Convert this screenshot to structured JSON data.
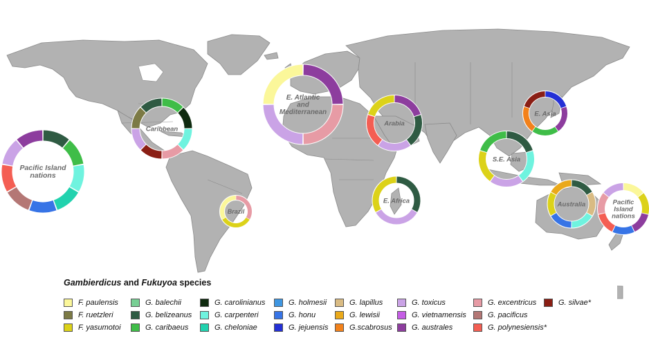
{
  "legend": {
    "title_part1": "Gambierdicus",
    "title_part2": " and ",
    "title_part3": "Fukuyoa",
    "title_part4": " species",
    "species": [
      {
        "id": "f-paulensis",
        "label": "F. paulensis",
        "color": "#fbf79a"
      },
      {
        "id": "f-ruetzleri",
        "label": "F. ruetzleri",
        "color": "#7c7a45"
      },
      {
        "id": "f-yasumotoi",
        "label": "F. yasumotoi",
        "color": "#dcd219"
      },
      {
        "id": "g-balechii",
        "label": "G. balechii",
        "color": "#78cf94"
      },
      {
        "id": "g-belizeanus",
        "label": "G. belizeanus",
        "color": "#2f5b43"
      },
      {
        "id": "g-caribaeus",
        "label": "G. caribaeus",
        "color": "#3fbd48"
      },
      {
        "id": "g-carolinianus",
        "label": "G. carolinianus",
        "color": "#0f2a0f"
      },
      {
        "id": "g-carpenteri",
        "label": "G. carpenteri",
        "color": "#6ff3df"
      },
      {
        "id": "g-cheloniae",
        "label": "G. cheloniae",
        "color": "#21d2ae"
      },
      {
        "id": "g-holmesii",
        "label": "G. holmesii",
        "color": "#3f96e1"
      },
      {
        "id": "g-honu",
        "label": "G. honu",
        "color": "#3774e6"
      },
      {
        "id": "g-jejuensis",
        "label": "G. jejuensis",
        "color": "#2430d6"
      },
      {
        "id": "g-lapillus",
        "label": "G. lapillus",
        "color": "#d9bb83"
      },
      {
        "id": "g-lewisii",
        "label": "G. lewisii",
        "color": "#eaa91a"
      },
      {
        "id": "g-scabrosus",
        "label": "G.scabrosus",
        "color": "#f2811b"
      },
      {
        "id": "g-toxicus",
        "label": "G. toxicus",
        "color": "#caa3e6"
      },
      {
        "id": "g-vietnamensis",
        "label": "G. vietnamensis",
        "color": "#c55de5"
      },
      {
        "id": "g-australes",
        "label": "G. australes",
        "color": "#8d3d9e"
      },
      {
        "id": "g-excentricus",
        "label": "G. excentricus",
        "color": "#e79ba5"
      },
      {
        "id": "g-pacificus",
        "label": "G. pacificus",
        "color": "#b47775"
      },
      {
        "id": "g-polynesiensis",
        "label": "G. polynesiensis*",
        "color": "#f45e53"
      },
      {
        "id": "g-silvae",
        "label": "G. silvae*",
        "color": "#8a1e14"
      }
    ]
  },
  "regions": [
    {
      "id": "pacific-west",
      "label_lines": [
        "Pacific Island",
        "nations"
      ],
      "segments": [
        "g-belizeanus",
        "g-caribaeus",
        "g-carpenteri",
        "g-cheloniae",
        "g-honu",
        "g-pacificus",
        "g-polynesiensis",
        "g-toxicus",
        "g-australes"
      ]
    },
    {
      "id": "caribbean",
      "label_lines": [
        "Caribbean"
      ],
      "segments": [
        "g-caribaeus",
        "g-carolinianus",
        "g-carpenteri",
        "g-excentricus",
        "g-silvae",
        "g-toxicus",
        "f-ruetzleri",
        "g-belizeanus"
      ]
    },
    {
      "id": "brazil",
      "label_lines": [
        "Brazil"
      ],
      "segments": [
        "g-excentricus",
        "f-yasumotoi",
        "f-paulensis"
      ]
    },
    {
      "id": "e-atlantic",
      "label_lines": [
        "E. Atlantic",
        "and",
        "Mediterranean"
      ],
      "segments": [
        "g-australes",
        "g-excentricus",
        "g-toxicus",
        "f-paulensis"
      ]
    },
    {
      "id": "arabia",
      "label_lines": [
        "Arabia"
      ],
      "segments": [
        "g-australes",
        "g-belizeanus",
        "g-toxicus",
        "g-polynesiensis",
        "f-yasumotoi"
      ]
    },
    {
      "id": "e-africa",
      "label_lines": [
        "E. Africa"
      ],
      "segments": [
        "g-belizeanus",
        "g-toxicus",
        "f-yasumotoi"
      ]
    },
    {
      "id": "e-asia",
      "label_lines": [
        "E. Asia"
      ],
      "segments": [
        "g-jejuensis",
        "g-australes",
        "g-caribaeus",
        "g-scabrosus",
        "g-silvae"
      ]
    },
    {
      "id": "se-asia",
      "label_lines": [
        "S.E. Asia"
      ],
      "segments": [
        "g-belizeanus",
        "g-carpenteri",
        "g-toxicus",
        "f-yasumotoi",
        "g-caribaeus"
      ]
    },
    {
      "id": "australia",
      "label_lines": [
        "Australia"
      ],
      "segments": [
        "g-belizeanus",
        "g-lapillus",
        "g-carpenteri",
        "g-honu",
        "f-yasumotoi",
        "g-lewisii"
      ]
    },
    {
      "id": "pacific-east",
      "label_lines": [
        "Pacific",
        "Island",
        "nations"
      ],
      "segments": [
        "f-paulensis",
        "f-yasumotoi",
        "g-australes",
        "g-honu",
        "g-polynesiensis",
        "g-excentricus",
        "g-toxicus"
      ]
    }
  ]
}
